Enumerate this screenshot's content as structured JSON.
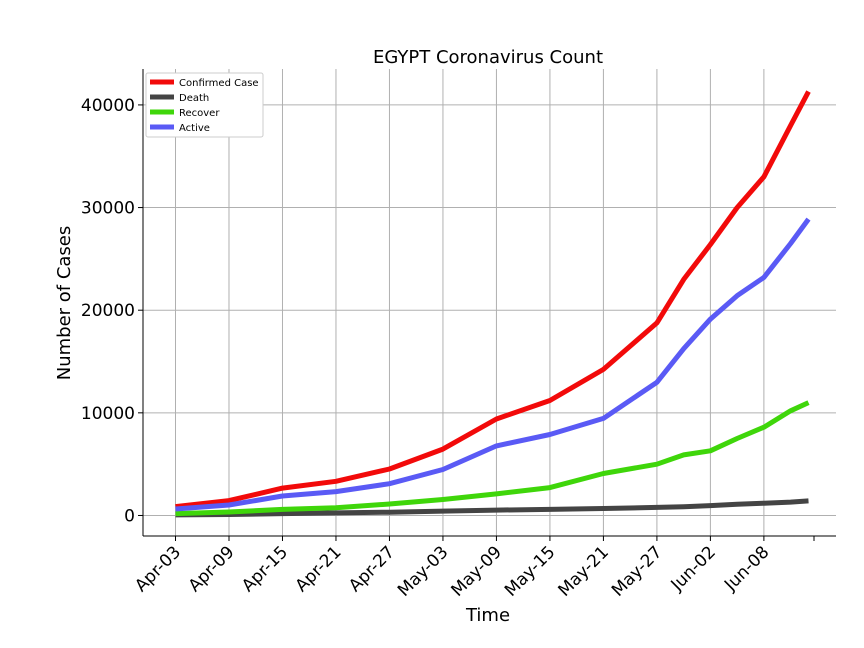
{
  "chart_data": {
    "type": "line",
    "title": "EGYPT Coronavirus Count",
    "xlabel": "Time",
    "ylabel": "Number of Cases",
    "ylim": [
      -2000,
      43500
    ],
    "yticks": [
      0,
      10000,
      20000,
      30000,
      40000
    ],
    "xticks": [
      "Apr-03",
      "Apr-09",
      "Apr-15",
      "Apr-21",
      "Apr-27",
      "May-03",
      "May-09",
      "May-15",
      "May-21",
      "May-27",
      "Jun-02",
      "Jun-08"
    ],
    "grid": true,
    "legend_position": "top-left",
    "x": [
      "Apr-03",
      "Apr-09",
      "Apr-15",
      "Apr-21",
      "Apr-27",
      "May-03",
      "May-09",
      "May-15",
      "May-21",
      "May-27",
      "May-30",
      "Jun-02",
      "Jun-05",
      "Jun-08",
      "Jun-11",
      "Jun-13"
    ],
    "series": [
      {
        "name": "Confirmed Case",
        "color": "#f20a0a",
        "values": [
          865,
          1450,
          2670,
          3330,
          4530,
          6470,
          9400,
          11200,
          14230,
          18760,
          23000,
          26400,
          30000,
          33000,
          38000,
          41300
        ]
      },
      {
        "name": "Death",
        "color": "#444444",
        "values": [
          58,
          94,
          183,
          250,
          317,
          429,
          525,
          592,
          680,
          783,
          850,
          959,
          1090,
          1200,
          1300,
          1420
        ]
      },
      {
        "name": "Recover",
        "color": "#3fd60a",
        "values": [
          179,
          339,
          589,
          756,
          1120,
          1560,
          2100,
          2720,
          4090,
          5000,
          5900,
          6300,
          7500,
          8600,
          10200,
          11000
        ]
      },
      {
        "name": "Active",
        "color": "#5a5af5",
        "values": [
          628,
          1017,
          1898,
          2324,
          3093,
          4481,
          6775,
          7888,
          9460,
          12977,
          16250,
          19137,
          21410,
          23200,
          26500,
          28880
        ]
      }
    ]
  }
}
